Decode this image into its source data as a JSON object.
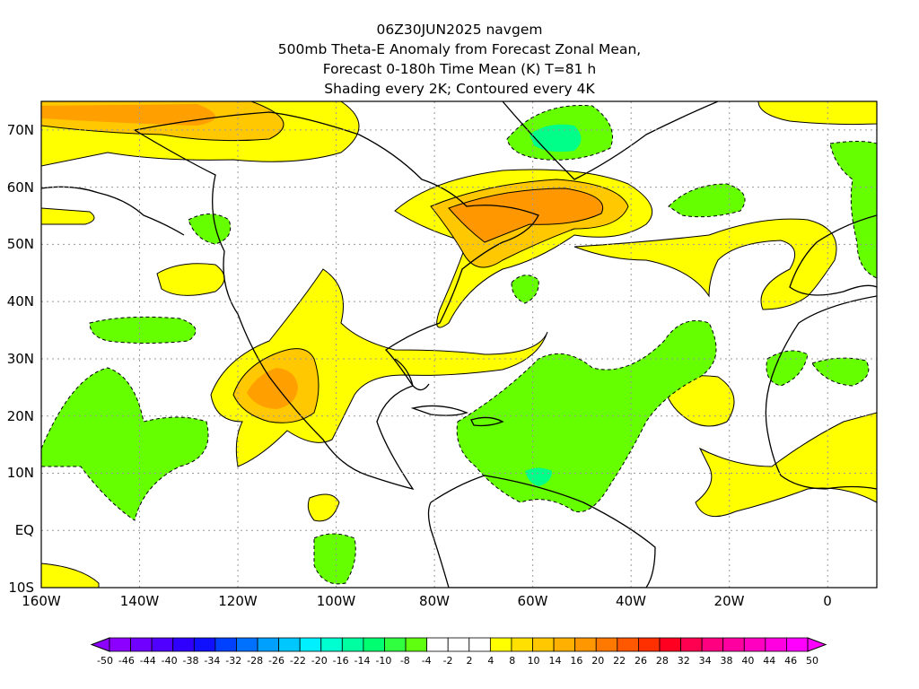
{
  "title": {
    "lines": [
      "06Z30JUN2025 navgem",
      "500mb Theta-E Anomaly from Forecast Zonal Mean,",
      "Forecast 0-180h Time Mean (K) T=81 h",
      "Shading every 2K; Contoured every 4K"
    ]
  },
  "map": {
    "lon_ticks": [
      "160W",
      "140W",
      "120W",
      "100W",
      "80W",
      "60W",
      "40W",
      "20W",
      "0"
    ],
    "lat_ticks": [
      "70N",
      "60N",
      "50N",
      "40N",
      "30N",
      "20N",
      "10N",
      "EQ",
      "10S"
    ],
    "lon_range": [
      -160,
      10
    ],
    "lat_range": [
      -10,
      75
    ],
    "grid": true
  },
  "colorbar": {
    "labels": [
      "-50",
      "-46",
      "-44",
      "-40",
      "-38",
      "-34",
      "-32",
      "-28",
      "-26",
      "-22",
      "-20",
      "-16",
      "-14",
      "-10",
      "-8",
      "-4",
      "-2",
      "2",
      "4",
      "8",
      "10",
      "14",
      "16",
      "20",
      "22",
      "26",
      "28",
      "32",
      "34",
      "38",
      "40",
      "44",
      "46",
      "50"
    ],
    "colors": [
      "#8c00ff",
      "#7000ff",
      "#5000ff",
      "#3000ff",
      "#1010ff",
      "#0040ff",
      "#0070ff",
      "#00a0ff",
      "#00c8ff",
      "#00f0ff",
      "#00ffd0",
      "#00ffa0",
      "#00ff70",
      "#30ff40",
      "#60ff10",
      "#ffffff",
      "#ffffff",
      "#ffffff",
      "#ffff00",
      "#ffe000",
      "#ffc800",
      "#ffb000",
      "#ff9800",
      "#ff7800",
      "#ff5800",
      "#ff3000",
      "#ff0020",
      "#ff0050",
      "#ff0080",
      "#ff00a0",
      "#ff00c0",
      "#ff00e0",
      "#ff00ff"
    ]
  },
  "colors": {
    "ocean": "#ffffff",
    "neg_shade": "#66ff00",
    "neg_shade_strong": "#00ff88",
    "pos_shade": "#ffff00",
    "pos_shade_mid": "#ffd000",
    "pos_shade_strong": "#ffa000",
    "pos_shade_max": "#ff8800"
  }
}
